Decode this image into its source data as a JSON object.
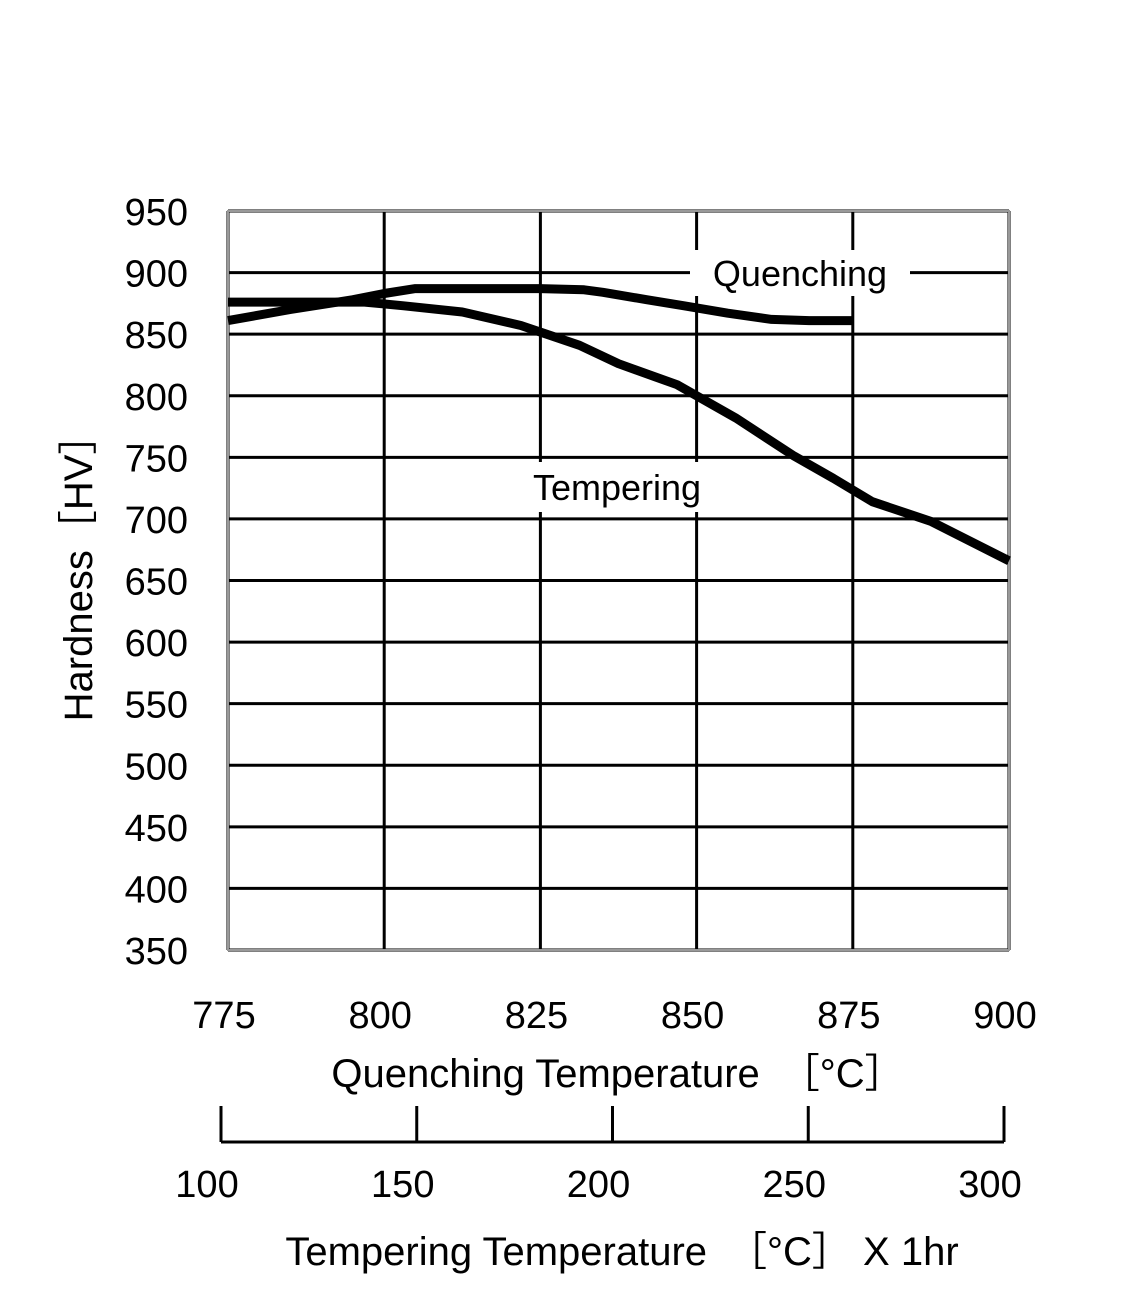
{
  "chart_data": {
    "type": "line",
    "ylabel": "Hardness［HV］",
    "xlabel": "Quenching Temperature　［°C］",
    "x2label": "Tempering Temperature　［°C］ X 1hr",
    "x_ticks": [
      "775",
      "800",
      "825",
      "850",
      "875",
      "900"
    ],
    "x2_ticks": [
      "100",
      "150",
      "200",
      "250",
      "300"
    ],
    "y_ticks": [
      "950",
      "900",
      "850",
      "800",
      "750",
      "700",
      "650",
      "600",
      "550",
      "500",
      "450",
      "400",
      "350"
    ],
    "xlim": [
      775,
      900
    ],
    "x2lim": [
      100,
      300
    ],
    "ylim": [
      350,
      950
    ],
    "grid": true,
    "series": [
      {
        "name": "Quenching",
        "axis": "quenching",
        "x": [
          775,
          785,
          795,
          800,
          805,
          812,
          825,
          832,
          835,
          842,
          848,
          855,
          862,
          868,
          875
        ],
        "y": [
          861,
          870,
          878,
          883,
          887,
          887,
          887,
          886,
          884,
          878,
          873,
          867,
          862,
          861,
          861
        ]
      },
      {
        "name": "Tempering",
        "axis": "tempering",
        "x": [
          100,
          120,
          135,
          145,
          160,
          175,
          190,
          200,
          215,
          230,
          245,
          255,
          265,
          280,
          300
        ],
        "y": [
          876,
          876,
          876,
          873,
          868,
          857,
          841,
          826,
          809,
          782,
          751,
          733,
          714,
          698,
          666
        ]
      }
    ]
  }
}
